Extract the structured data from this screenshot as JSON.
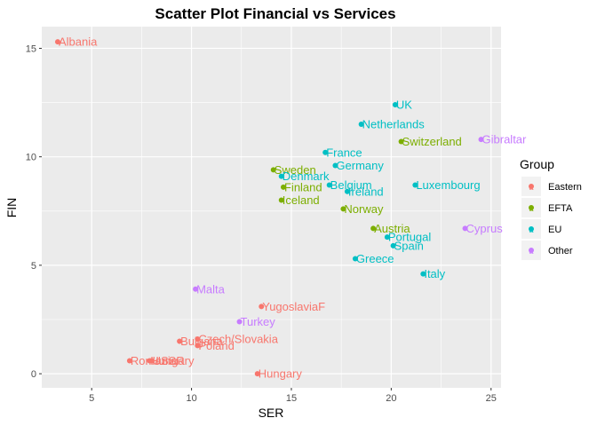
{
  "chart_data": {
    "type": "scatter",
    "title": "Scatter Plot Financial vs Services",
    "xlabel": "SER",
    "ylabel": "FIN",
    "xlim": [
      2.5,
      25.5
    ],
    "ylim": [
      -0.65,
      16.0
    ],
    "xticks": [
      5,
      10,
      15,
      20,
      25
    ],
    "yticks": [
      0,
      5,
      10,
      15
    ],
    "grid": true,
    "legend": {
      "title": "Group",
      "position": "right",
      "entries": [
        {
          "name": "Eastern",
          "color": "#F8766D"
        },
        {
          "name": "EFTA",
          "color": "#7CAE00"
        },
        {
          "name": "EU",
          "color": "#00BFC4"
        },
        {
          "name": "Other",
          "color": "#C77CFF"
        }
      ]
    },
    "points": [
      {
        "label": "Albania",
        "x": 3.3,
        "y": 15.3,
        "group": "Eastern"
      },
      {
        "label": "UK",
        "x": 20.2,
        "y": 12.4,
        "group": "EU"
      },
      {
        "label": "Netherlands",
        "x": 18.5,
        "y": 11.5,
        "group": "EU"
      },
      {
        "label": "Switzerland",
        "x": 20.5,
        "y": 10.7,
        "group": "EFTA"
      },
      {
        "label": "Gibraltar",
        "x": 24.5,
        "y": 10.8,
        "group": "Other"
      },
      {
        "label": "France",
        "x": 16.7,
        "y": 10.2,
        "group": "EU"
      },
      {
        "label": "Germany",
        "x": 17.2,
        "y": 9.6,
        "group": "EU"
      },
      {
        "label": "Sweden",
        "x": 14.1,
        "y": 9.4,
        "group": "EFTA"
      },
      {
        "label": "Denmark",
        "x": 14.5,
        "y": 9.1,
        "group": "EU"
      },
      {
        "label": "Belgium",
        "x": 16.9,
        "y": 8.7,
        "group": "EU"
      },
      {
        "label": "Finland",
        "x": 14.6,
        "y": 8.6,
        "group": "EFTA"
      },
      {
        "label": "Ireland",
        "x": 17.8,
        "y": 8.4,
        "group": "EU"
      },
      {
        "label": "Luxembourg",
        "x": 21.2,
        "y": 8.7,
        "group": "EU"
      },
      {
        "label": "Iceland",
        "x": 14.5,
        "y": 8.0,
        "group": "EFTA"
      },
      {
        "label": "Norway",
        "x": 17.6,
        "y": 7.6,
        "group": "EFTA"
      },
      {
        "label": "Austria",
        "x": 19.1,
        "y": 6.7,
        "group": "EFTA"
      },
      {
        "label": "Cyprus",
        "x": 23.7,
        "y": 6.7,
        "group": "Other"
      },
      {
        "label": "Portugal",
        "x": 19.8,
        "y": 6.3,
        "group": "EU"
      },
      {
        "label": "Spain",
        "x": 20.1,
        "y": 5.9,
        "group": "EU"
      },
      {
        "label": "Greece",
        "x": 18.2,
        "y": 5.3,
        "group": "EU"
      },
      {
        "label": "Italy",
        "x": 21.6,
        "y": 4.6,
        "group": "EU"
      },
      {
        "label": "Malta",
        "x": 10.2,
        "y": 3.9,
        "group": "Other"
      },
      {
        "label": "YugoslaviaF",
        "x": 13.5,
        "y": 3.1,
        "group": "Eastern"
      },
      {
        "label": "Turkey",
        "x": 12.4,
        "y": 2.4,
        "group": "Other"
      },
      {
        "label": "Czech/Slovakia",
        "x": 10.3,
        "y": 1.6,
        "group": "Eastern"
      },
      {
        "label": "Bulgaria",
        "x": 9.4,
        "y": 1.5,
        "group": "Eastern"
      },
      {
        "label": "Poland",
        "x": 10.3,
        "y": 1.3,
        "group": "Eastern"
      },
      {
        "label": "Romania",
        "x": 6.9,
        "y": 0.6,
        "group": "Eastern"
      },
      {
        "label": "Hungary",
        "x": 7.9,
        "y": 0.6,
        "group": "Eastern"
      },
      {
        "label": "USSR",
        "x": 8.0,
        "y": 0.6,
        "group": "Eastern"
      },
      {
        "label": "Hungary",
        "x": 13.3,
        "y": 0.0,
        "group": "Eastern"
      }
    ]
  }
}
